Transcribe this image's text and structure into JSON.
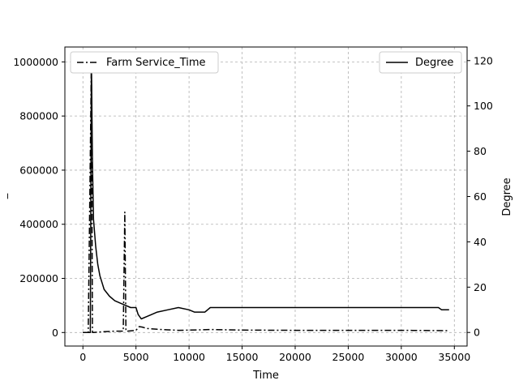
{
  "chart_data": {
    "type": "line",
    "title": "",
    "xlabel": "Time",
    "ylabel_left": "_",
    "ylabel_right": "Degree",
    "xlim": [
      -1700,
      36200
    ],
    "ylim_left": [
      -50000,
      1055000
    ],
    "ylim_right": [
      -6,
      126
    ],
    "xticks": [
      0,
      5000,
      10000,
      15000,
      20000,
      25000,
      30000,
      35000
    ],
    "yticks_left": [
      0,
      200000,
      400000,
      600000,
      800000,
      1000000
    ],
    "yticks_right": [
      0,
      20,
      40,
      60,
      80,
      100,
      120
    ],
    "grid": true,
    "series": [
      {
        "name": "Farm Service_Time",
        "axis": "left",
        "style": "dash-dot",
        "legend_position": "top-left",
        "x": [
          0,
          500,
          800,
          900,
          1000,
          1500,
          2000,
          2500,
          3000,
          3500,
          3800,
          3950,
          4050,
          4200,
          5000,
          5300,
          5600,
          6000,
          7000,
          8000,
          9000,
          10000,
          11000,
          12000,
          15000,
          20000,
          25000,
          30000,
          34500
        ],
        "y": [
          0,
          0,
          1000000,
          0,
          0,
          2000,
          3000,
          4000,
          5000,
          5000,
          5000,
          445000,
          5000,
          5000,
          8000,
          22000,
          20000,
          15000,
          12000,
          10000,
          8000,
          9000,
          10000,
          11000,
          9000,
          8000,
          8000,
          8000,
          7000
        ]
      },
      {
        "name": "Degree",
        "axis": "right",
        "style": "solid",
        "legend_position": "top-right",
        "x": [
          0,
          400,
          700,
          800,
          900,
          1000,
          1200,
          1400,
          1600,
          1800,
          2000,
          2500,
          3000,
          3500,
          4000,
          4500,
          5000,
          5200,
          5500,
          6000,
          6500,
          7000,
          8000,
          9000,
          10000,
          10500,
          11000,
          11500,
          12000,
          33500,
          33800,
          34500
        ],
        "y": [
          0,
          0,
          0,
          121,
          75,
          50,
          38,
          30,
          25,
          22,
          19,
          16,
          14,
          13,
          12,
          11,
          11,
          8,
          6,
          7,
          8,
          9,
          10,
          11,
          10,
          9,
          9,
          9,
          11,
          11,
          10,
          10
        ]
      }
    ]
  }
}
